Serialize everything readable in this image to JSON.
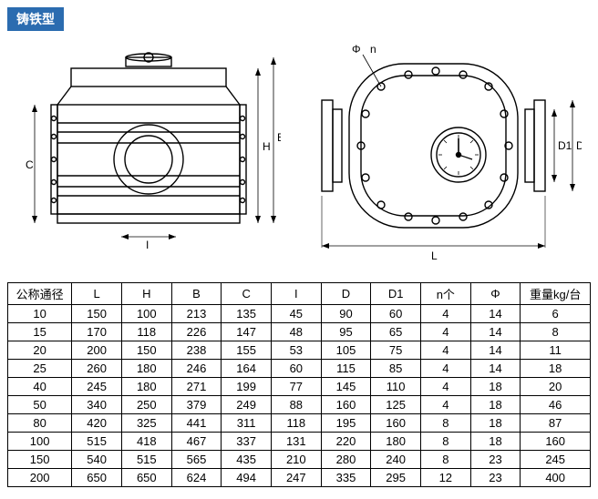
{
  "title": "铸铁型",
  "diagram_labels": {
    "left": {
      "C": "C",
      "I": "I",
      "H": "H",
      "B": "B"
    },
    "right": {
      "phi": "Φ",
      "n": "n",
      "D1": "D1",
      "D": "D",
      "L": "L"
    }
  },
  "table": {
    "columns": [
      "公称通径",
      "L",
      "H",
      "B",
      "C",
      "I",
      "D",
      "D1",
      "n个",
      "Φ",
      "重量kg/台"
    ],
    "rows": [
      [
        "10",
        "150",
        "100",
        "213",
        "135",
        "45",
        "90",
        "60",
        "4",
        "14",
        "6"
      ],
      [
        "15",
        "170",
        "118",
        "226",
        "147",
        "48",
        "95",
        "65",
        "4",
        "14",
        "8"
      ],
      [
        "20",
        "200",
        "150",
        "238",
        "155",
        "53",
        "105",
        "75",
        "4",
        "14",
        "11"
      ],
      [
        "25",
        "260",
        "180",
        "246",
        "164",
        "60",
        "115",
        "85",
        "4",
        "14",
        "18"
      ],
      [
        "40",
        "245",
        "180",
        "271",
        "199",
        "77",
        "145",
        "110",
        "4",
        "18",
        "20"
      ],
      [
        "50",
        "340",
        "250",
        "379",
        "249",
        "88",
        "160",
        "125",
        "4",
        "18",
        "46"
      ],
      [
        "80",
        "420",
        "325",
        "441",
        "311",
        "118",
        "195",
        "160",
        "8",
        "18",
        "87"
      ],
      [
        "100",
        "515",
        "418",
        "467",
        "337",
        "131",
        "220",
        "180",
        "8",
        "18",
        "160"
      ],
      [
        "150",
        "540",
        "515",
        "565",
        "435",
        "210",
        "280",
        "240",
        "8",
        "23",
        "245"
      ],
      [
        "200",
        "650",
        "650",
        "624",
        "494",
        "247",
        "335",
        "295",
        "12",
        "23",
        "400"
      ]
    ]
  },
  "style": {
    "title_bg": "#2b6cb0",
    "title_fg": "#ffffff",
    "border_color": "#000000",
    "background": "#ffffff",
    "font_size_table": 13,
    "font_size_title": 14
  }
}
